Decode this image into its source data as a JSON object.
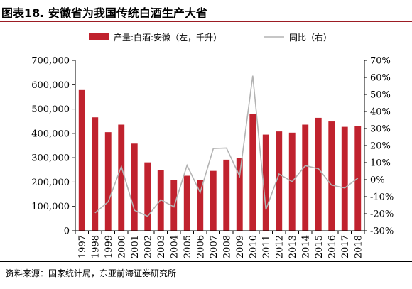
{
  "figure_title": "图表18.  安徽省为我国传统白酒生产大省",
  "source_note": "资料来源：国家统计局，东亚前海证券研究所",
  "colors": {
    "bar": "#c0222e",
    "line": "#b3b3b3",
    "accent_rule": "#9c1c23"
  },
  "chart_data": {
    "type": "bar+line",
    "categories": [
      "1997",
      "1998",
      "1999",
      "2000",
      "2001",
      "2002",
      "2003",
      "2004",
      "2005",
      "2006",
      "2007",
      "2008",
      "2009",
      "2010",
      "2011",
      "2012",
      "2013",
      "2014",
      "2015",
      "2016",
      "2017",
      "2018"
    ],
    "series": [
      {
        "name": "产量:白酒:安徽（左，千升）",
        "type": "bar",
        "axis": "left",
        "values": [
          578000,
          466000,
          405000,
          436000,
          358000,
          281000,
          248000,
          208000,
          226000,
          208000,
          246000,
          292000,
          298000,
          480000,
          395000,
          408000,
          403000,
          436000,
          464000,
          449000,
          427000,
          431000
        ]
      },
      {
        "name": "同比（右）",
        "type": "line",
        "axis": "right",
        "values": [
          null,
          -19.5,
          -13,
          7.7,
          -18,
          -21.5,
          -11.8,
          -16,
          8.4,
          -7.6,
          18.3,
          18.6,
          2.1,
          61,
          -17.6,
          3.3,
          -1.2,
          8.2,
          6.4,
          -3.2,
          -4.9,
          0.9
        ]
      }
    ],
    "y_left": {
      "ylim": [
        0,
        700000
      ],
      "ticks": [
        "0",
        "100,000",
        "200,000",
        "300,000",
        "400,000",
        "500,000",
        "600,000",
        "700,000"
      ]
    },
    "y_right": {
      "ylim": [
        -30,
        70
      ],
      "ticks": [
        "-30%",
        "-20%",
        "-10%",
        "0%",
        "10%",
        "20%",
        "30%",
        "40%",
        "50%",
        "60%",
        "70%"
      ]
    },
    "grid": false,
    "legend_position": "top"
  }
}
